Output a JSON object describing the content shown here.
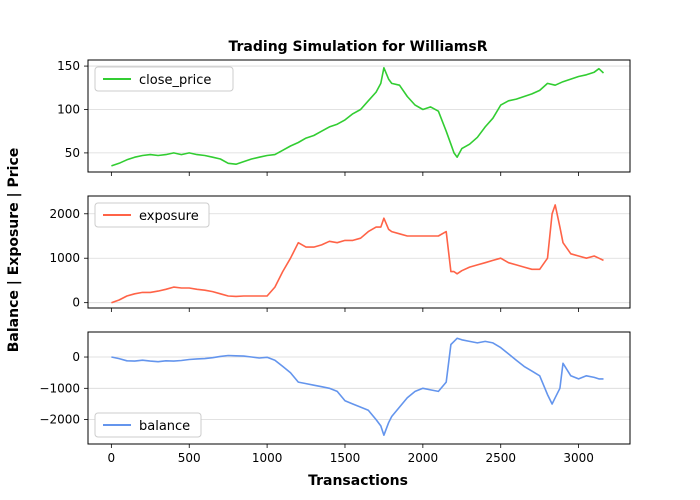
{
  "chart_data": {
    "type": "line",
    "title": "Trading Simulation for WilliamsR",
    "xlabel": "Transactions",
    "ylabel": "Balance | Exposure | Price",
    "xlim": [
      -150,
      3330
    ],
    "x_ticks": [
      0,
      500,
      1000,
      1500,
      2000,
      2500,
      3000
    ],
    "grid": true,
    "panels": [
      {
        "id": "price",
        "ylim": [
          28,
          157
        ],
        "y_ticks": [
          50,
          100,
          150
        ],
        "legend": {
          "position": "top-left"
        },
        "series": [
          {
            "name": "close_price",
            "color": "#32cd32",
            "x": [
              0,
              50,
              100,
              150,
              200,
              250,
              300,
              350,
              400,
              450,
              500,
              550,
              600,
              650,
              700,
              750,
              800,
              850,
              900,
              950,
              1000,
              1050,
              1100,
              1150,
              1200,
              1250,
              1300,
              1350,
              1400,
              1450,
              1500,
              1550,
              1600,
              1650,
              1700,
              1730,
              1750,
              1780,
              1800,
              1850,
              1900,
              1950,
              2000,
              2050,
              2100,
              2150,
              2180,
              2200,
              2220,
              2250,
              2300,
              2350,
              2400,
              2450,
              2500,
              2550,
              2600,
              2650,
              2700,
              2750,
              2800,
              2850,
              2900,
              2950,
              3000,
              3050,
              3100,
              3130,
              3160
            ],
            "y": [
              35,
              38,
              42,
              45,
              47,
              48,
              47,
              48,
              50,
              48,
              50,
              48,
              47,
              45,
              43,
              38,
              37,
              40,
              43,
              45,
              47,
              48,
              53,
              58,
              62,
              67,
              70,
              75,
              80,
              83,
              88,
              95,
              100,
              110,
              120,
              130,
              148,
              135,
              130,
              128,
              115,
              105,
              100,
              103,
              98,
              75,
              60,
              50,
              45,
              55,
              60,
              68,
              80,
              90,
              105,
              110,
              112,
              115,
              118,
              122,
              130,
              128,
              132,
              135,
              138,
              140,
              143,
              147,
              142
            ]
          }
        ]
      },
      {
        "id": "exposure",
        "ylim": [
          -120,
          2400
        ],
        "y_ticks": [
          0,
          1000,
          2000
        ],
        "legend": {
          "position": "top-left"
        },
        "series": [
          {
            "name": "exposure",
            "color": "#ff6347",
            "x": [
              0,
              50,
              100,
              150,
              200,
              250,
              300,
              350,
              400,
              450,
              500,
              550,
              600,
              650,
              700,
              750,
              800,
              850,
              900,
              950,
              1000,
              1050,
              1100,
              1150,
              1200,
              1250,
              1300,
              1350,
              1400,
              1450,
              1500,
              1550,
              1600,
              1650,
              1700,
              1730,
              1750,
              1780,
              1800,
              1850,
              1900,
              1950,
              2000,
              2050,
              2100,
              2150,
              2180,
              2200,
              2220,
              2250,
              2300,
              2350,
              2400,
              2450,
              2500,
              2550,
              2600,
              2650,
              2700,
              2750,
              2800,
              2830,
              2850,
              2880,
              2900,
              2950,
              3000,
              3050,
              3100,
              3130,
              3160
            ],
            "y": [
              0,
              60,
              150,
              200,
              230,
              230,
              260,
              300,
              350,
              330,
              330,
              300,
              280,
              250,
              200,
              150,
              140,
              150,
              150,
              150,
              150,
              350,
              700,
              1000,
              1350,
              1250,
              1250,
              1300,
              1380,
              1350,
              1400,
              1400,
              1450,
              1600,
              1700,
              1700,
              1900,
              1650,
              1600,
              1550,
              1500,
              1500,
              1500,
              1500,
              1500,
              1600,
              700,
              700,
              650,
              720,
              800,
              850,
              900,
              950,
              1000,
              900,
              850,
              800,
              750,
              750,
              1000,
              2000,
              2200,
              1700,
              1350,
              1100,
              1050,
              1000,
              1050,
              1000,
              950
            ]
          }
        ]
      },
      {
        "id": "balance",
        "ylim": [
          -2780,
          800
        ],
        "y_ticks": [
          -2000,
          -1000,
          0
        ],
        "legend": {
          "position": "bottom-left"
        },
        "series": [
          {
            "name": "balance",
            "color": "#6495ed",
            "x": [
              0,
              50,
              100,
              150,
              200,
              250,
              300,
              350,
              400,
              450,
              500,
              550,
              600,
              650,
              700,
              750,
              800,
              850,
              900,
              950,
              1000,
              1050,
              1100,
              1150,
              1200,
              1250,
              1300,
              1350,
              1400,
              1450,
              1500,
              1550,
              1600,
              1650,
              1700,
              1730,
              1750,
              1780,
              1800,
              1850,
              1900,
              1950,
              2000,
              2050,
              2100,
              2150,
              2180,
              2200,
              2220,
              2250,
              2300,
              2350,
              2400,
              2450,
              2500,
              2550,
              2600,
              2650,
              2700,
              2750,
              2800,
              2830,
              2850,
              2880,
              2900,
              2950,
              3000,
              3050,
              3100,
              3130,
              3160
            ],
            "y": [
              0,
              -50,
              -120,
              -130,
              -100,
              -130,
              -150,
              -120,
              -130,
              -110,
              -80,
              -60,
              -50,
              -20,
              20,
              50,
              40,
              30,
              0,
              -30,
              -10,
              -100,
              -300,
              -500,
              -800,
              -850,
              -900,
              -950,
              -1000,
              -1100,
              -1400,
              -1500,
              -1600,
              -1700,
              -2000,
              -2200,
              -2500,
              -2100,
              -1900,
              -1600,
              -1300,
              -1100,
              -1000,
              -1050,
              -1100,
              -800,
              400,
              500,
              600,
              550,
              500,
              450,
              500,
              450,
              300,
              100,
              -100,
              -300,
              -450,
              -600,
              -1200,
              -1500,
              -1300,
              -1000,
              -200,
              -600,
              -700,
              -600,
              -650,
              -700,
              -700
            ]
          }
        ]
      }
    ]
  }
}
